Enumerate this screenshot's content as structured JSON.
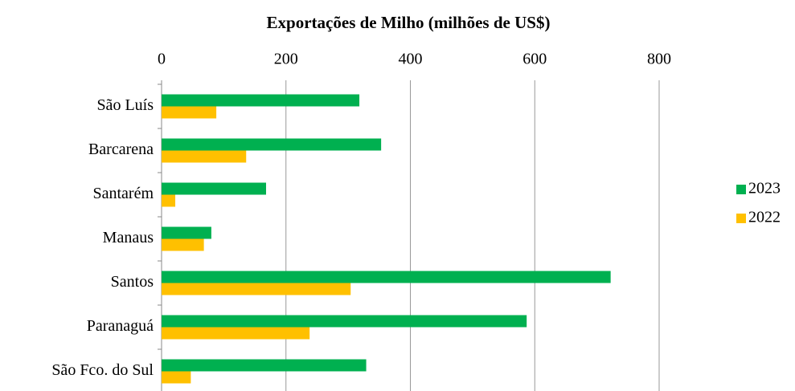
{
  "chart_data": {
    "type": "bar",
    "orientation": "horizontal",
    "title": "Exportações de Milho (milhões de US$)",
    "categories": [
      "São Luís",
      "Barcarena",
      "Santarém",
      "Manaus",
      "Santos",
      "Paranaguá",
      "São Fco. do Sul"
    ],
    "series": [
      {
        "name": "2023",
        "color": "#00b050",
        "values": [
          318,
          353,
          168,
          80,
          722,
          587,
          329
        ]
      },
      {
        "name": "2022",
        "color": "#ffc000",
        "values": [
          88,
          136,
          22,
          68,
          304,
          238,
          47
        ]
      }
    ],
    "xlim": [
      0,
      800
    ],
    "xticks": [
      0,
      200,
      400,
      600,
      800
    ],
    "grid": true,
    "legend": "right"
  }
}
